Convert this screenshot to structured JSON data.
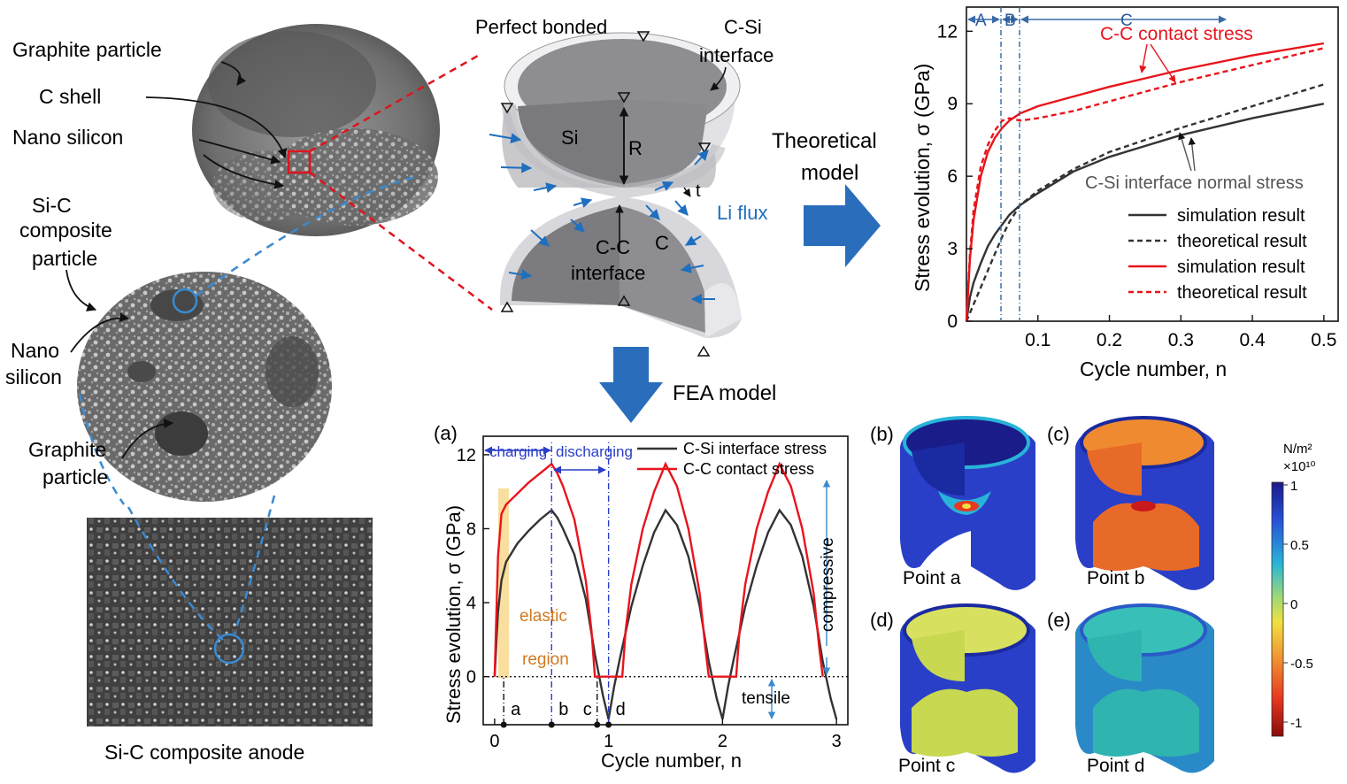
{
  "left": {
    "graphite_particle": "Graphite particle",
    "c_shell": "C shell",
    "nano_silicon": "Nano silicon",
    "sic_composite_1": "Si-C",
    "sic_composite_2": "composite",
    "sic_composite_3": "particle",
    "nano_silicon2_1": "Nano",
    "nano_silicon2_2": "silicon",
    "graphite2_1": "Graphite",
    "graphite2_2": "particle",
    "anode": "Si-C composite anode"
  },
  "model": {
    "perfect_bonded": "Perfect bonded",
    "csi_1": "C-Si",
    "csi_2": "interface",
    "si": "Si",
    "r": "R",
    "t": "t",
    "li_flux": "Li flux",
    "c": "C",
    "cc_1": "C-C",
    "cc_2": "interface",
    "theoretical_1": "Theoretical",
    "theoretical_2": "model",
    "fea": "FEA model"
  },
  "top_chart": {
    "chart_data": {
      "type": "line",
      "xlabel": "Cycle number, n",
      "ylabel": "Stress evolution, σ (GPa)",
      "xlim": [
        0,
        0.52
      ],
      "ylim": [
        0,
        13
      ],
      "xticks": [
        "0.1",
        "0.2",
        "0.3",
        "0.4",
        "0.5"
      ],
      "yticks": [
        "0",
        "3",
        "6",
        "9",
        "12"
      ],
      "region_labels": [
        "A",
        "B",
        "C"
      ],
      "region_bounds": [
        0.05,
        0.075
      ],
      "annot_cc": "C-C contact stress",
      "annot_csi": "C-Si interface normal stress",
      "legend": [
        {
          "label": "simulation result",
          "color": "#333333",
          "dash": false
        },
        {
          "label": "theoretical result",
          "color": "#333333",
          "dash": true
        },
        {
          "label": "simulation result",
          "color": "#e8141c",
          "dash": false
        },
        {
          "label": "theoretical result",
          "color": "#e8141c",
          "dash": true
        }
      ],
      "series": [
        {
          "x": [
            0,
            0.005,
            0.01,
            0.02,
            0.03,
            0.04,
            0.05,
            0.06,
            0.075,
            0.1,
            0.15,
            0.2,
            0.3,
            0.4,
            0.5
          ],
          "y": [
            0,
            1.0,
            1.6,
            2.4,
            3.1,
            3.6,
            4.0,
            4.4,
            4.8,
            5.3,
            6.2,
            6.8,
            7.7,
            8.4,
            9.0
          ],
          "color": "#333333",
          "dash": false
        },
        {
          "x": [
            0,
            0.01,
            0.02,
            0.03,
            0.04,
            0.05,
            0.06,
            0.075,
            0.1,
            0.15,
            0.2,
            0.3,
            0.4,
            0.5
          ],
          "y": [
            0,
            0.7,
            1.4,
            2.1,
            2.8,
            3.5,
            4.1,
            4.8,
            5.4,
            6.3,
            7.0,
            8.0,
            8.9,
            9.8
          ],
          "color": "#333333",
          "dash": true
        },
        {
          "x": [
            0,
            0.005,
            0.01,
            0.02,
            0.03,
            0.04,
            0.05,
            0.06,
            0.075,
            0.1,
            0.15,
            0.2,
            0.3,
            0.4,
            0.5
          ],
          "y": [
            0,
            2.6,
            4.2,
            6.0,
            7.0,
            7.6,
            8.0,
            8.3,
            8.6,
            8.9,
            9.3,
            9.7,
            10.4,
            11.0,
            11.5
          ],
          "color": "#e8141c",
          "dash": false
        },
        {
          "x": [
            0,
            0.005,
            0.01,
            0.02,
            0.03,
            0.04,
            0.05,
            0.06,
            0.075,
            0.1,
            0.15,
            0.2,
            0.3,
            0.4,
            0.5
          ],
          "y": [
            0,
            2.8,
            4.6,
            6.4,
            7.3,
            7.9,
            8.3,
            8.4,
            8.3,
            8.4,
            8.7,
            9.1,
            9.9,
            10.6,
            11.3
          ],
          "color": "#e8141c",
          "dash": true
        }
      ]
    }
  },
  "bottom_chart": {
    "panel": "(a)",
    "chart_data": {
      "type": "line",
      "xlabel": "Cycle number, n",
      "ylabel": "Stress evolution, σ (GPa)",
      "xlim": [
        -0.1,
        3.1
      ],
      "ylim": [
        -2.6,
        13
      ],
      "xticks": [
        "0",
        "1",
        "2",
        "3"
      ],
      "yticks": [
        "0",
        "4",
        "8",
        "12"
      ],
      "charging": "charging",
      "discharging": "discharging",
      "elastic_1": "elastic",
      "elastic_2": "region",
      "compressive": "compressive",
      "tensile": "tensile",
      "points": [
        {
          "label": "a",
          "x": 0.08
        },
        {
          "label": "b",
          "x": 0.5
        },
        {
          "label": "c",
          "x": 0.9
        },
        {
          "label": "d",
          "x": 1.0
        }
      ],
      "legend": [
        {
          "label": "C-Si interface stress",
          "color": "#333333"
        },
        {
          "label": "C-C contact stress",
          "color": "#e8141c"
        }
      ],
      "series": [
        {
          "name": "C-Si interface stress",
          "color": "#333333",
          "x": [
            0,
            0.03,
            0.06,
            0.1,
            0.2,
            0.3,
            0.4,
            0.5,
            0.55,
            0.6,
            0.7,
            0.8,
            0.88,
            0.95,
            1.0,
            1.05,
            1.1,
            1.2,
            1.3,
            1.4,
            1.5,
            1.6,
            1.7,
            1.8,
            1.88,
            1.95,
            2.0,
            2.05,
            2.1,
            2.2,
            2.3,
            2.4,
            2.5,
            2.6,
            2.7,
            2.8,
            2.88,
            2.95,
            3.0
          ],
          "y": [
            0,
            3.5,
            5.2,
            6.2,
            7.2,
            7.9,
            8.5,
            9.0,
            8.6,
            8.0,
            6.6,
            4.2,
            1.2,
            -1.0,
            -2.3,
            -0.5,
            1.0,
            3.8,
            6.0,
            7.8,
            9.0,
            8.2,
            6.5,
            3.8,
            0.8,
            -1.2,
            -2.3,
            -0.5,
            1.0,
            3.8,
            6.0,
            7.8,
            9.0,
            8.2,
            6.5,
            3.8,
            0.8,
            -1.2,
            -2.3
          ]
        },
        {
          "name": "C-C contact stress",
          "color": "#e8141c",
          "x": [
            0,
            0.03,
            0.06,
            0.1,
            0.2,
            0.3,
            0.4,
            0.5,
            0.55,
            0.6,
            0.7,
            0.8,
            0.85,
            0.88,
            1.0,
            1.12,
            1.15,
            1.2,
            1.3,
            1.4,
            1.5,
            1.6,
            1.7,
            1.8,
            1.85,
            1.88,
            2.0,
            2.12,
            2.15,
            2.2,
            2.3,
            2.4,
            2.5,
            2.6,
            2.7,
            2.8,
            2.85,
            2.88
          ],
          "y": [
            0,
            6.5,
            8.8,
            9.3,
            9.9,
            10.5,
            11.0,
            11.5,
            11.0,
            10.3,
            8.5,
            5.2,
            2.5,
            0,
            0,
            0,
            2.5,
            5.0,
            8.0,
            10.0,
            11.5,
            10.3,
            8.0,
            4.5,
            1.5,
            0,
            0,
            0,
            2.5,
            5.0,
            8.0,
            10.0,
            11.5,
            10.3,
            8.0,
            4.5,
            1.5,
            0
          ]
        }
      ]
    }
  },
  "contours": {
    "b": "(b)",
    "c": "(c)",
    "d": "(d)",
    "e": "(e)",
    "point_a": "Point a",
    "point_b": "Point b",
    "point_c": "Point c",
    "point_d": "Point d"
  },
  "colorbar": {
    "unit": "N/m²",
    "scale": "×10¹⁰",
    "ticks": [
      "1",
      "0.5",
      "0",
      "-0.5",
      "-1"
    ],
    "stops": [
      "#1a1a8a",
      "#2850d8",
      "#28b4d8",
      "#9cd878",
      "#f0e040",
      "#f09030",
      "#e83820",
      "#8a0a0a"
    ]
  }
}
